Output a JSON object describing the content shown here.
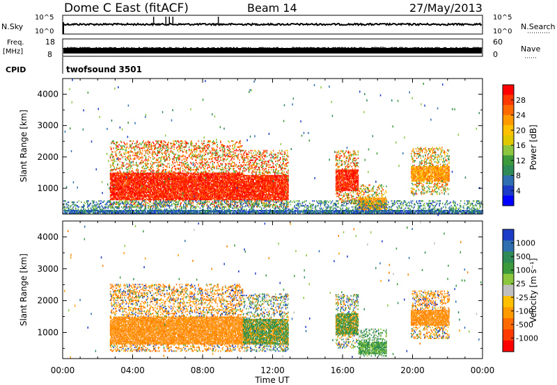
{
  "header": {
    "station": "Dome C East (fitACF)",
    "beam": "Beam 14",
    "date": "27/May/2013"
  },
  "top_panels": {
    "nsky_label": "N.Sky",
    "nsky_ticks": [
      "10^5",
      "10^0"
    ],
    "nsearch_label": "N.Search",
    "nsearch_ticks": [
      "10^5",
      "10^0"
    ],
    "freq_label": "Freq.",
    "freq_unit": "[MHz]",
    "freq_ticks": [
      "18",
      "8"
    ],
    "nave_label": "Nave",
    "nave_ticks": [
      "60",
      "0"
    ],
    "cpid_label": "CPID",
    "cpid_value": "twofsound 3501"
  },
  "axes": {
    "ylabel": "Slant Range [km]",
    "yticks": [
      "4000",
      "3000",
      "2000",
      "1000"
    ],
    "xlabel": "Time UT",
    "xticks": [
      "00:00",
      "04:00",
      "08:00",
      "12:00",
      "16:00",
      "20:00",
      "00:00"
    ]
  },
  "power_scale": {
    "label": "Power [dB]",
    "ticks": [
      "28",
      "24",
      "20",
      "16",
      "12",
      "8",
      "4"
    ],
    "colors": [
      "#ff0000",
      "#ff3a00",
      "#ff6a00",
      "#ff9a00",
      "#ffc000",
      "#e0c800",
      "#8cc63f",
      "#3c9a3c",
      "#2e8b57",
      "#2f6fb0",
      "#1c3cc8",
      "#0000ff"
    ]
  },
  "velocity_scale": {
    "label": "Velocity [m s⁻¹]",
    "ticks": [
      "1000",
      "500",
      "100",
      "25",
      "-25",
      "-100",
      "-500",
      "-1000"
    ],
    "colors": [
      "#1c3cc8",
      "#2f6fb0",
      "#2e8b57",
      "#3c9a3c",
      "#8cc63f",
      "#bfbfbf",
      "#ffc000",
      "#ff9a00",
      "#ff6a00",
      "#ff3a00",
      "#ff0000"
    ]
  },
  "chart_data": [
    {
      "type": "heatmap",
      "title": "Power",
      "x_range_hours": [
        0,
        24
      ],
      "y_range_km": [
        180,
        4500
      ],
      "colorbar_range_db": [
        0,
        32
      ],
      "regions": [
        {
          "t0": 2.7,
          "t1": 10.3,
          "r0": 400,
          "r1": 2500,
          "core": [
            600,
            1500
          ],
          "level": "high"
        },
        {
          "t0": 10.3,
          "t1": 12.9,
          "r0": 400,
          "r1": 2200,
          "core": [
            600,
            1400
          ],
          "level": "high"
        },
        {
          "t0": 15.6,
          "t1": 16.9,
          "r0": 500,
          "r1": 2200,
          "core": [
            900,
            1600
          ],
          "level": "high"
        },
        {
          "t0": 16.9,
          "t1": 18.5,
          "r0": 250,
          "r1": 1100,
          "core": [
            300,
            700
          ],
          "level": "mid"
        },
        {
          "t0": 19.9,
          "t1": 22.1,
          "r0": 800,
          "r1": 2300,
          "core": [
            1200,
            1700
          ],
          "level": "mid"
        },
        {
          "t0": 0.0,
          "t1": 24.0,
          "r0": 200,
          "r1": 600,
          "core": [
            200,
            300
          ],
          "level": "low"
        }
      ]
    },
    {
      "type": "heatmap",
      "title": "Velocity",
      "x_range_hours": [
        0,
        24
      ],
      "y_range_km": [
        180,
        4500
      ],
      "colorbar_range_ms": [
        -1000,
        1000
      ],
      "regions": [
        {
          "t0": 2.7,
          "t1": 10.3,
          "r0": 400,
          "r1": 2500,
          "core": [
            600,
            1500
          ],
          "level": "negative"
        },
        {
          "t0": 10.3,
          "t1": 12.9,
          "r0": 400,
          "r1": 2200,
          "core": [
            600,
            1400
          ],
          "level": "mixed"
        },
        {
          "t0": 15.6,
          "t1": 16.9,
          "r0": 500,
          "r1": 2200,
          "core": [
            900,
            1600
          ],
          "level": "mixed"
        },
        {
          "t0": 16.9,
          "t1": 18.5,
          "r0": 250,
          "r1": 1100,
          "core": [
            300,
            700
          ],
          "level": "positive"
        },
        {
          "t0": 19.9,
          "t1": 22.1,
          "r0": 800,
          "r1": 2300,
          "core": [
            1200,
            1700
          ],
          "level": "negative"
        }
      ]
    }
  ]
}
